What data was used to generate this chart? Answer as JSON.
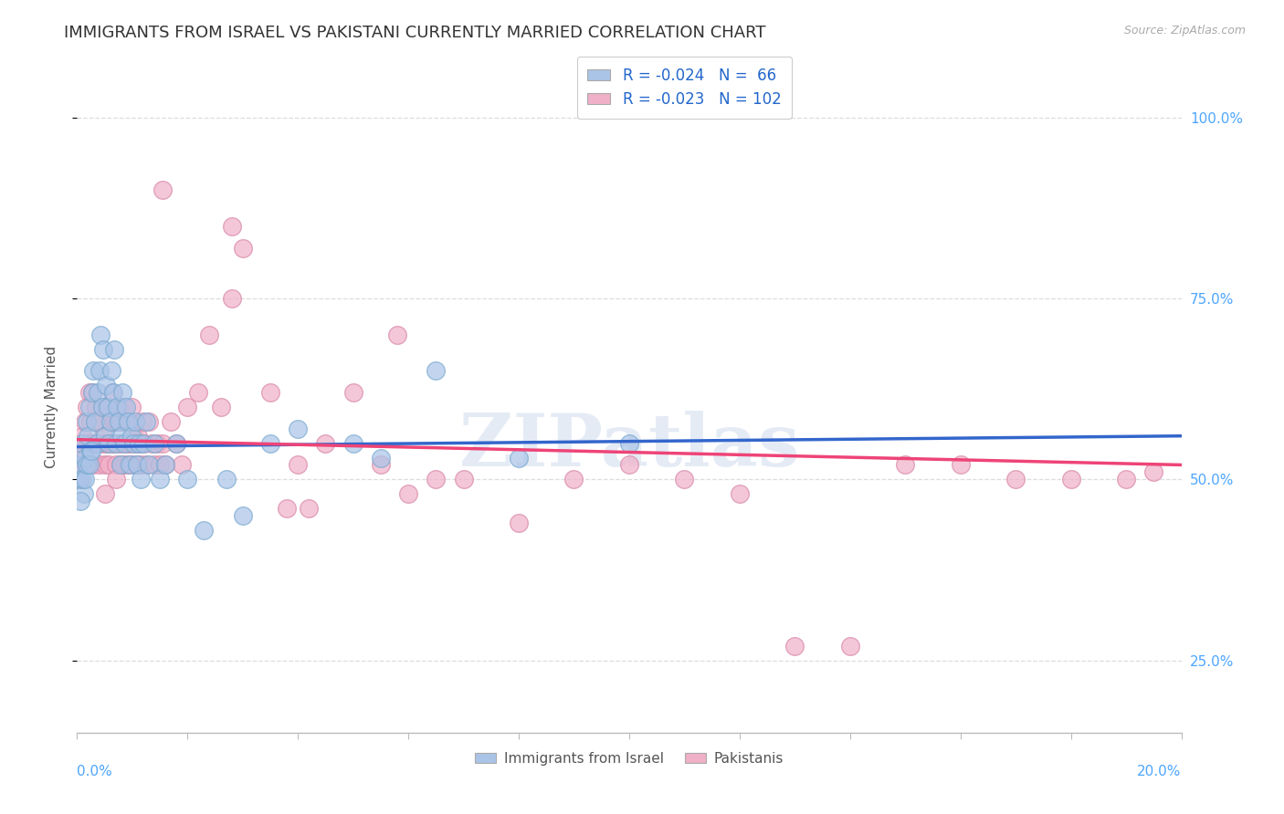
{
  "title": "IMMIGRANTS FROM ISRAEL VS PAKISTANI CURRENTLY MARRIED CORRELATION CHART",
  "source": "Source: ZipAtlas.com",
  "ylabel": "Currently Married",
  "series": [
    {
      "label": "Immigrants from Israel",
      "R_text": "R = -0.024",
      "N_text": "N =  66",
      "color": "#aac4e8",
      "edge_color": "#7aaad0",
      "line_color": "#3366cc",
      "points_x": [
        0.05,
        0.08,
        0.1,
        0.12,
        0.15,
        0.18,
        0.2,
        0.22,
        0.25,
        0.28,
        0.3,
        0.32,
        0.35,
        0.38,
        0.4,
        0.42,
        0.45,
        0.48,
        0.5,
        0.52,
        0.55,
        0.58,
        0.6,
        0.62,
        0.65,
        0.68,
        0.7,
        0.72,
        0.75,
        0.78,
        0.8,
        0.82,
        0.85,
        0.88,
        0.92,
        0.95,
        0.98,
        1.02,
        1.05,
        1.08,
        1.12,
        1.15,
        1.2,
        1.25,
        1.3,
        1.4,
        1.5,
        1.6,
        1.8,
        2.0,
        2.3,
        2.7,
        3.0,
        3.5,
        4.0,
        5.0,
        5.5,
        6.5,
        8.0,
        10.0,
        0.06,
        0.09,
        0.14,
        0.17,
        0.22,
        0.26
      ],
      "points_y": [
        50,
        52,
        55,
        48,
        53,
        58,
        56,
        60,
        54,
        62,
        65,
        58,
        55,
        62,
        65,
        70,
        60,
        68,
        56,
        63,
        60,
        55,
        58,
        65,
        62,
        68,
        55,
        60,
        58,
        52,
        56,
        62,
        55,
        60,
        58,
        52,
        56,
        55,
        58,
        52,
        55,
        50,
        55,
        58,
        52,
        55,
        50,
        52,
        55,
        50,
        43,
        50,
        45,
        55,
        57,
        55,
        53,
        65,
        53,
        55,
        47,
        50,
        50,
        52,
        52,
        54
      ],
      "trend_x0": 0.0,
      "trend_x1": 20.0,
      "trend_y0": 54.5,
      "trend_y1": 56.0
    },
    {
      "label": "Pakistanis",
      "R_text": "R = -0.023",
      "N_text": "N = 102",
      "color": "#f0b0c8",
      "edge_color": "#d888a8",
      "line_color": "#ee4477",
      "points_x": [
        0.04,
        0.06,
        0.08,
        0.1,
        0.12,
        0.14,
        0.16,
        0.18,
        0.2,
        0.22,
        0.24,
        0.26,
        0.28,
        0.3,
        0.32,
        0.34,
        0.36,
        0.38,
        0.4,
        0.42,
        0.44,
        0.46,
        0.48,
        0.5,
        0.52,
        0.54,
        0.56,
        0.58,
        0.6,
        0.62,
        0.64,
        0.66,
        0.68,
        0.7,
        0.72,
        0.74,
        0.76,
        0.78,
        0.8,
        0.82,
        0.84,
        0.86,
        0.88,
        0.9,
        0.92,
        0.94,
        0.96,
        0.98,
        1.0,
        1.02,
        1.05,
        1.08,
        1.1,
        1.12,
        1.15,
        1.18,
        1.2,
        1.25,
        1.3,
        1.35,
        1.4,
        1.45,
        1.5,
        1.55,
        1.6,
        1.7,
        1.8,
        1.9,
        2.0,
        2.2,
        2.4,
        2.6,
        2.8,
        3.0,
        3.5,
        4.0,
        4.5,
        5.0,
        5.5,
        6.0,
        6.5,
        7.0,
        8.0,
        9.0,
        10.0,
        11.0,
        12.0,
        13.0,
        14.0,
        15.0,
        16.0,
        17.0,
        18.0,
        19.0,
        19.5,
        1.55,
        2.8,
        3.8,
        4.2,
        5.8,
        0.5,
        0.7
      ],
      "points_y": [
        50,
        55,
        52,
        56,
        54,
        58,
        52,
        60,
        55,
        62,
        58,
        55,
        62,
        52,
        58,
        60,
        55,
        58,
        52,
        58,
        55,
        60,
        56,
        52,
        55,
        60,
        55,
        52,
        58,
        55,
        62,
        55,
        58,
        52,
        58,
        55,
        60,
        52,
        58,
        55,
        60,
        52,
        58,
        55,
        52,
        58,
        55,
        60,
        52,
        56,
        55,
        52,
        56,
        55,
        52,
        58,
        55,
        52,
        58,
        55,
        52,
        55,
        52,
        55,
        52,
        58,
        55,
        52,
        60,
        62,
        70,
        60,
        75,
        82,
        62,
        52,
        55,
        62,
        52,
        48,
        50,
        50,
        44,
        50,
        52,
        50,
        48,
        27,
        27,
        52,
        52,
        50,
        50,
        50,
        51,
        90,
        85,
        46,
        46,
        70,
        48,
        50
      ],
      "trend_x0": 0.0,
      "trend_x1": 20.0,
      "trend_y0": 55.5,
      "trend_y1": 52.0
    }
  ],
  "xlim": [
    0,
    20
  ],
  "ylim": [
    15,
    105
  ],
  "y_ticks": [
    25,
    50,
    75,
    100
  ],
  "y_tick_labels": [
    "25.0%",
    "50.0%",
    "75.0%",
    "100.0%"
  ],
  "watermark": "ZIPatlas",
  "tick_color": "#4da6ff",
  "source_color": "#aaaaaa",
  "title_fontsize": 13,
  "tick_fontsize": 11,
  "ylabel_fontsize": 11,
  "background_color": "#ffffff",
  "grid_color": "#dddddd"
}
